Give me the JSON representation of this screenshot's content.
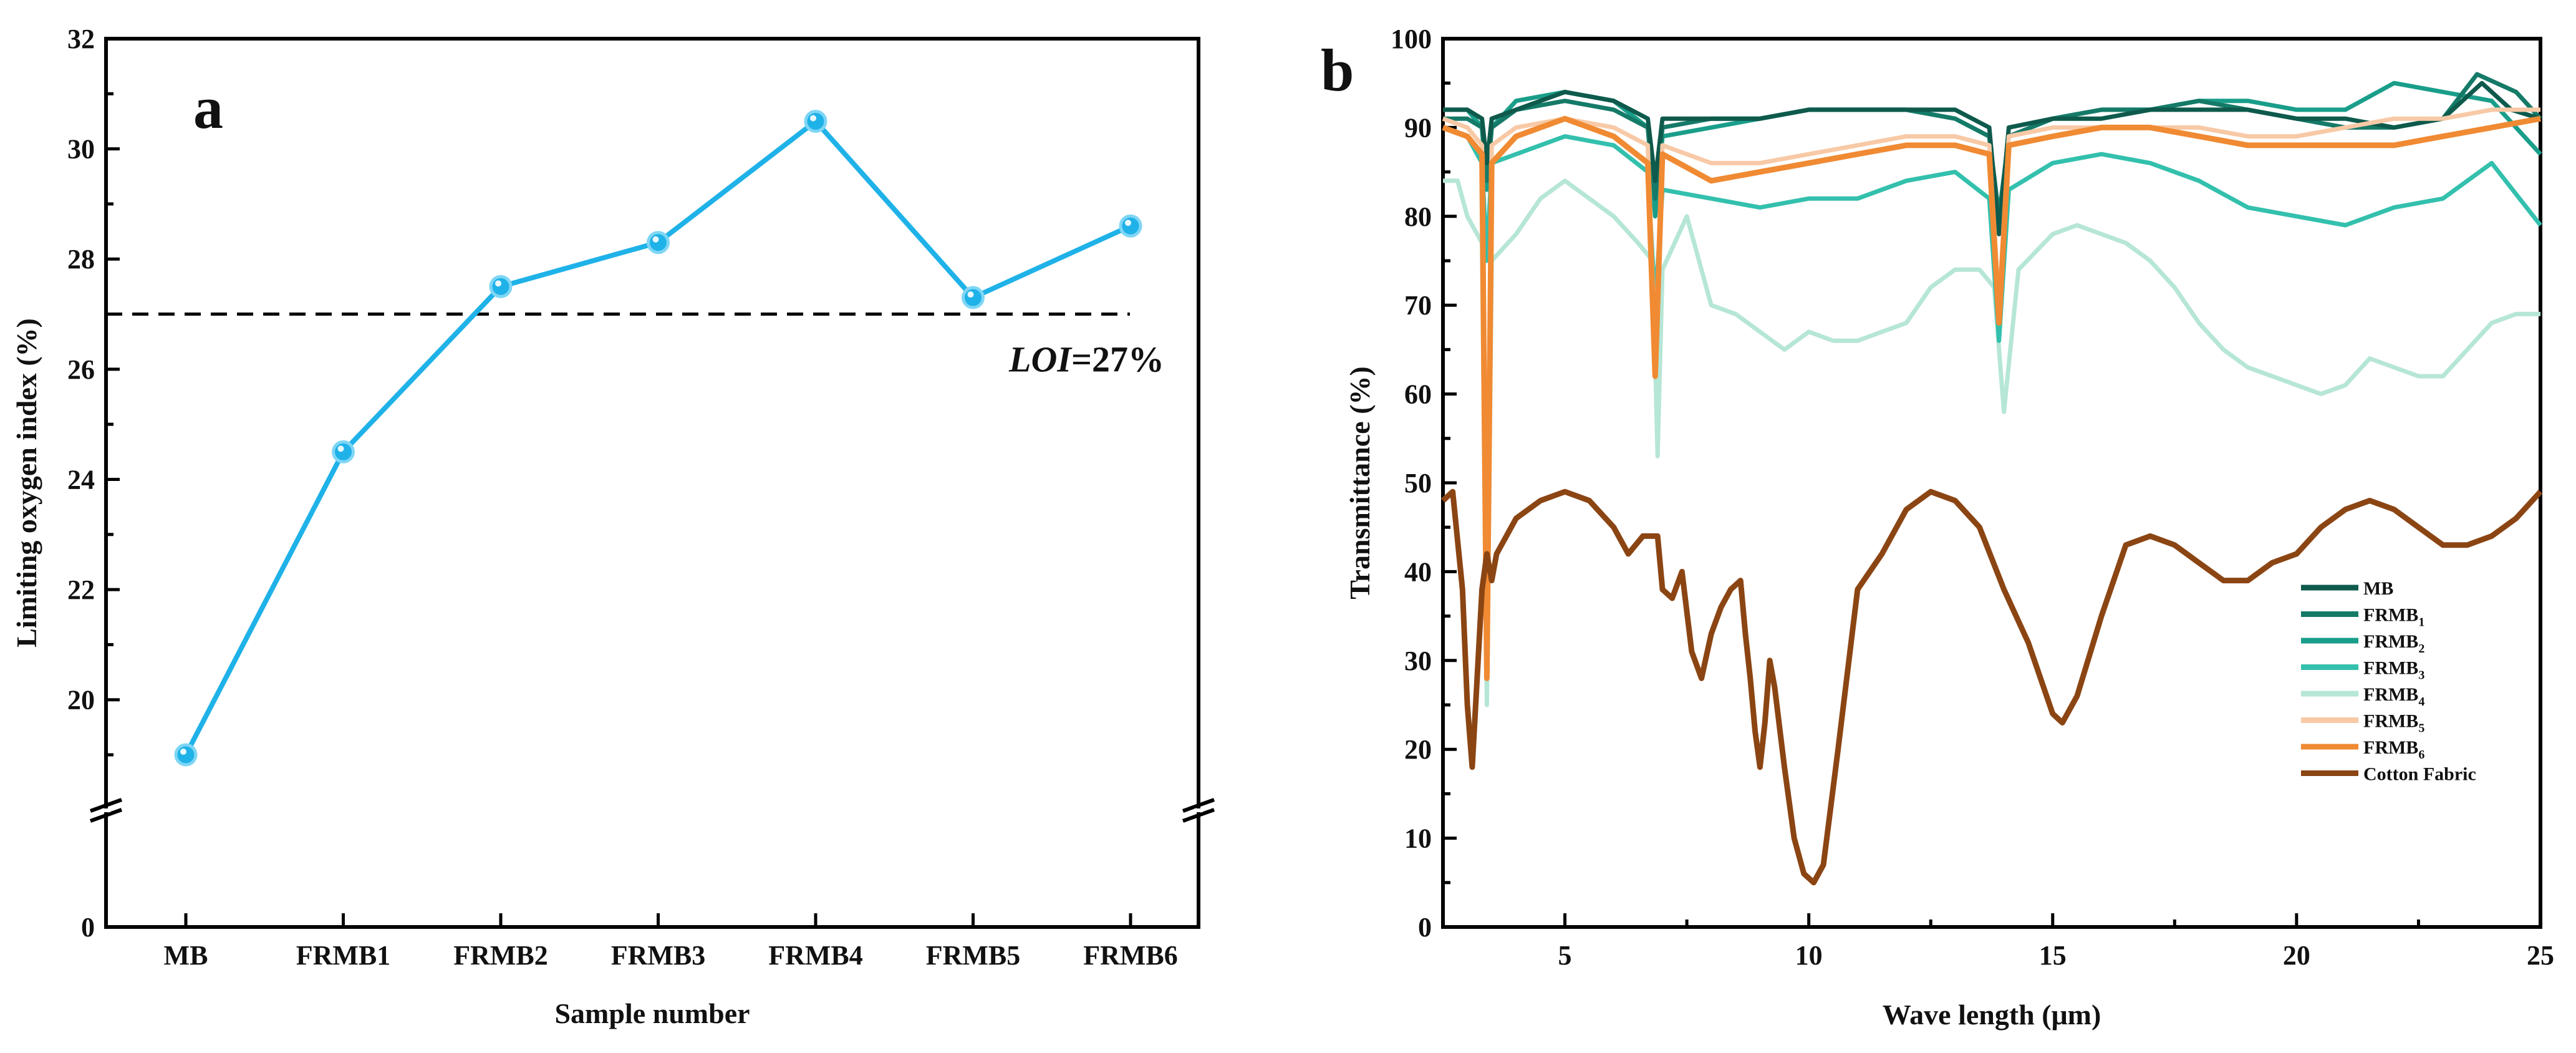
{
  "chart_data": [
    {
      "panel": "a",
      "type": "line",
      "title": "",
      "xlabel": "Sample number",
      "ylabel": "Limiting oxygen index (%)",
      "categories": [
        "MB",
        "FRMB1",
        "FRMB2",
        "FRMB3",
        "FRMB4",
        "FRMB5",
        "FRMB6"
      ],
      "series": [
        {
          "name": "LOI",
          "values": [
            19.0,
            24.5,
            27.5,
            28.3,
            30.5,
            27.3,
            28.6
          ],
          "color": "#1fb2e8"
        }
      ],
      "yticks": [
        "0",
        "20",
        "22",
        "24",
        "26",
        "28",
        "30",
        "32"
      ],
      "ylim": [
        18,
        32
      ],
      "axis_break": true,
      "reference_line": {
        "y": 27,
        "label_italic": "LOI",
        "label_rest": "=27%"
      },
      "grid": false
    },
    {
      "panel": "b",
      "type": "line",
      "title": "",
      "xlabel": "Wave length (μm)",
      "ylabel": "Transmittance (%)",
      "xlim": [
        2.5,
        25
      ],
      "ylim": [
        0,
        100
      ],
      "xticks": [
        "5",
        "10",
        "15",
        "20",
        "25"
      ],
      "yticks": [
        "0",
        "10",
        "20",
        "30",
        "40",
        "50",
        "60",
        "70",
        "80",
        "90",
        "100"
      ],
      "legend_position": "lower-right",
      "grid": false,
      "series": [
        {
          "name": "MB",
          "sub": "",
          "color": "#0e5a4c",
          "x": [
            2.5,
            3.0,
            3.3,
            3.4,
            3.5,
            4,
            5,
            6,
            6.7,
            6.85,
            7,
            8,
            9,
            10,
            11,
            12,
            13,
            13.7,
            13.9,
            14.1,
            15,
            16,
            17,
            18,
            19,
            20,
            21,
            22,
            23,
            23.8,
            24.4,
            25
          ],
          "y": [
            92,
            92,
            91,
            86,
            91,
            92,
            94,
            93,
            91,
            84,
            91,
            91,
            91,
            92,
            92,
            92,
            92,
            90,
            78,
            90,
            91,
            91,
            92,
            92,
            92,
            91,
            91,
            90,
            91,
            95,
            92,
            91
          ]
        },
        {
          "name": "FRMB",
          "sub": "1",
          "color": "#157a68",
          "x": [
            2.5,
            3.0,
            3.3,
            3.4,
            3.5,
            4,
            5,
            6,
            6.7,
            6.85,
            7,
            8,
            9,
            10,
            11,
            12,
            13,
            13.7,
            13.9,
            14.1,
            15,
            16,
            17,
            18,
            19,
            20,
            21,
            22,
            23,
            23.7,
            24.5,
            25
          ],
          "y": [
            91,
            91,
            90,
            84,
            90,
            92,
            93,
            92,
            90,
            82,
            90,
            91,
            91,
            92,
            92,
            92,
            91,
            89,
            80,
            89,
            91,
            92,
            92,
            93,
            92,
            91,
            90,
            90,
            91,
            96,
            94,
            91
          ]
        },
        {
          "name": "FRMB",
          "sub": "2",
          "color": "#199e8a",
          "x": [
            2.5,
            3.0,
            3.3,
            3.4,
            3.5,
            4,
            5,
            6,
            6.7,
            6.85,
            7,
            8,
            9,
            10,
            11,
            12,
            13,
            13.7,
            13.9,
            14.1,
            15,
            16,
            17,
            18,
            19,
            20,
            21,
            22,
            23,
            24,
            25
          ],
          "y": [
            92,
            92,
            90,
            83,
            90,
            93,
            94,
            93,
            90,
            80,
            89,
            90,
            91,
            92,
            92,
            92,
            91,
            89,
            79,
            89,
            91,
            92,
            92,
            93,
            93,
            92,
            92,
            95,
            94,
            93,
            87
          ]
        },
        {
          "name": "FRMB",
          "sub": "3",
          "color": "#33c0ad",
          "x": [
            2.5,
            3.0,
            3.3,
            3.4,
            3.5,
            4,
            5,
            6,
            6.7,
            6.85,
            7,
            8,
            9,
            10,
            11,
            12,
            13,
            13.7,
            13.9,
            14.1,
            15,
            16,
            17,
            18,
            19,
            20,
            21,
            22,
            23,
            24,
            25
          ],
          "y": [
            90,
            89,
            86,
            75,
            86,
            87,
            89,
            88,
            85,
            70,
            83,
            82,
            81,
            82,
            82,
            84,
            85,
            82,
            66,
            83,
            86,
            87,
            86,
            84,
            81,
            80,
            79,
            81,
            82,
            86,
            79
          ]
        },
        {
          "name": "FRMB",
          "sub": "4",
          "color": "#b6e6d6",
          "x": [
            2.5,
            2.8,
            3.0,
            3.3,
            3.4,
            3.5,
            4,
            4.5,
            5,
            6,
            6.5,
            6.8,
            6.9,
            7,
            7.5,
            8,
            8.5,
            9,
            9.5,
            10,
            10.5,
            11,
            11.5,
            12,
            12.5,
            13,
            13.5,
            13.8,
            14,
            14.3,
            15,
            15.5,
            16,
            16.5,
            17,
            17.5,
            18,
            18.5,
            19,
            19.5,
            20,
            20.5,
            21,
            21.5,
            22,
            22.5,
            23,
            23.5,
            24,
            24.5,
            25
          ],
          "y": [
            84,
            84,
            80,
            77,
            25,
            75,
            78,
            82,
            84,
            80,
            77,
            75,
            53,
            74,
            80,
            70,
            69,
            67,
            65,
            67,
            66,
            66,
            67,
            68,
            72,
            74,
            74,
            72,
            58,
            74,
            78,
            79,
            78,
            77,
            75,
            72,
            68,
            65,
            63,
            62,
            61,
            60,
            61,
            64,
            63,
            62,
            62,
            65,
            68,
            69,
            69
          ]
        },
        {
          "name": "FRMB",
          "sub": "5",
          "color": "#f8c9a6",
          "x": [
            2.5,
            3.0,
            3.3,
            3.4,
            3.5,
            4,
            5,
            6,
            6.7,
            6.85,
            7,
            8,
            9,
            10,
            11,
            12,
            13,
            13.7,
            13.9,
            14.1,
            15,
            16,
            17,
            18,
            19,
            20,
            21,
            22,
            23,
            24,
            25
          ],
          "y": [
            91,
            90,
            88,
            40,
            88,
            90,
            91,
            90,
            88,
            65,
            88,
            86,
            86,
            87,
            88,
            89,
            89,
            88,
            70,
            89,
            90,
            90,
            90,
            90,
            89,
            89,
            90,
            91,
            91,
            92,
            92
          ]
        },
        {
          "name": "FRMB",
          "sub": "6",
          "color": "#f08a33",
          "x": [
            2.5,
            3.0,
            3.3,
            3.4,
            3.5,
            4,
            5,
            6,
            6.7,
            6.85,
            7,
            8,
            9,
            10,
            11,
            12,
            13,
            13.7,
            13.9,
            14.1,
            15,
            16,
            17,
            18,
            19,
            20,
            21,
            22,
            23,
            24,
            25
          ],
          "y": [
            90,
            89,
            87,
            28,
            86,
            89,
            91,
            89,
            86,
            62,
            87,
            84,
            85,
            86,
            87,
            88,
            88,
            87,
            68,
            88,
            89,
            90,
            90,
            89,
            88,
            88,
            88,
            88,
            89,
            90,
            91
          ]
        },
        {
          "name": "Cotton Fabric",
          "sub": "",
          "color": "#8b4513",
          "x": [
            2.5,
            2.7,
            2.9,
            3.0,
            3.1,
            3.2,
            3.3,
            3.4,
            3.5,
            3.6,
            3.8,
            4.0,
            4.5,
            5.0,
            5.5,
            6.0,
            6.3,
            6.6,
            6.9,
            7.0,
            7.2,
            7.4,
            7.6,
            7.8,
            8.0,
            8.2,
            8.4,
            8.6,
            8.7,
            8.8,
            8.9,
            9.0,
            9.1,
            9.2,
            9.3,
            9.5,
            9.7,
            9.9,
            10.1,
            10.3,
            10.6,
            11,
            11.5,
            12,
            12.5,
            13,
            13.5,
            14,
            14.5,
            15,
            15.2,
            15.5,
            16,
            16.5,
            17,
            17.5,
            18,
            18.5,
            19,
            19.5,
            20,
            20.5,
            21,
            21.5,
            22,
            22.5,
            23,
            23.5,
            24,
            24.5,
            25
          ],
          "y": [
            48,
            49,
            38,
            25,
            18,
            28,
            38,
            42,
            39,
            42,
            44,
            46,
            48,
            49,
            48,
            45,
            42,
            44,
            44,
            38,
            37,
            40,
            31,
            28,
            33,
            36,
            38,
            39,
            33,
            28,
            22,
            18,
            23,
            30,
            27,
            18,
            10,
            6,
            5,
            7,
            20,
            38,
            42,
            47,
            49,
            48,
            45,
            38,
            32,
            24,
            23,
            26,
            35,
            43,
            44,
            43,
            41,
            39,
            39,
            41,
            42,
            45,
            47,
            48,
            47,
            45,
            43,
            43,
            44,
            46,
            49
          ]
        }
      ]
    }
  ]
}
